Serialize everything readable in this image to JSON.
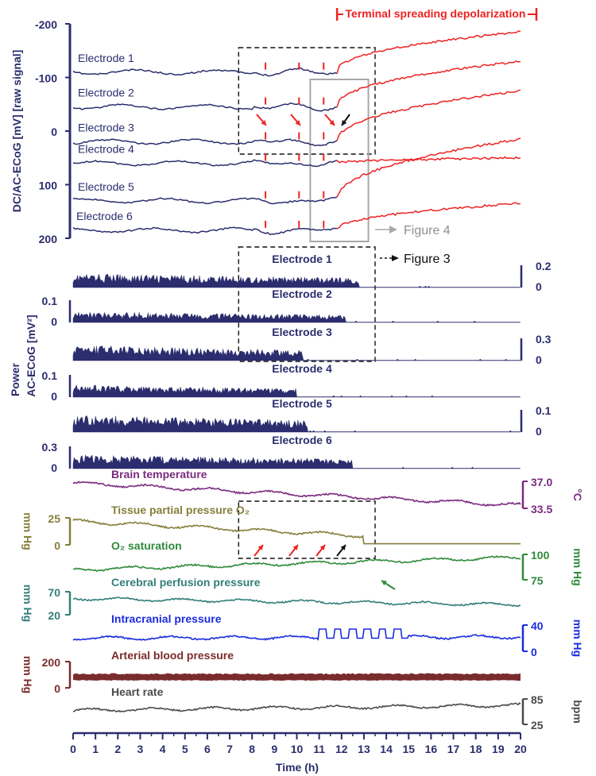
{
  "chart_data": {
    "type": "line",
    "title": "",
    "x_axis": {
      "label": "Time (h)",
      "range": [
        0,
        20
      ],
      "ticks": [
        "0",
        "1",
        "2",
        "3",
        "4",
        "5",
        "6",
        "7",
        "8",
        "9",
        "10",
        "11",
        "12",
        "13",
        "14",
        "15",
        "16",
        "17",
        "18",
        "19",
        "20"
      ]
    },
    "annotations": {
      "tsd": "Terminal spreading depolarization",
      "tsd_range_h": [
        11.8,
        20
      ],
      "figure4": "Figure 4",
      "figure3": "Figure 3",
      "figure4_window_h": [
        10.6,
        13.2
      ],
      "figure3_window_h": [
        7.4,
        13.5
      ]
    },
    "panels": {
      "dc": {
        "ylabel": "DC/AC-ECoG [mV] [raw signal]",
        "ticks": [
          "-200",
          "-100",
          "0",
          "100",
          "200"
        ],
        "tick_values": [
          -200,
          -100,
          0,
          100,
          200
        ],
        "range": [
          -200,
          200
        ],
        "series": [
          {
            "name": "Electrode 1",
            "baseline": -110,
            "end": -185,
            "color": "#2b2d6e",
            "tsd_color": "#ee2222"
          },
          {
            "name": "Electrode 2",
            "baseline": -45,
            "end": -130,
            "color": "#2b2d6e",
            "tsd_color": "#ee2222"
          },
          {
            "name": "Electrode 3",
            "baseline": 20,
            "end": -75,
            "color": "#2b2d6e",
            "tsd_color": "#ee2222"
          },
          {
            "name": "Electrode 4",
            "baseline": 60,
            "end": 50,
            "color": "#2b2d6e",
            "tsd_color": "#ee2222"
          },
          {
            "name": "Electrode 5",
            "baseline": 130,
            "end": 15,
            "color": "#2b2d6e",
            "tsd_color": "#ee2222"
          },
          {
            "name": "Electrode 6",
            "baseline": 185,
            "end": 135,
            "color": "#2b2d6e",
            "tsd_color": "#ee2222"
          }
        ]
      },
      "power": {
        "ylabel": "Power",
        "ylabel2": "AC-ECoG [mV²]",
        "series": [
          {
            "name": "Electrode 1",
            "ticks": [
              "0.2",
              "0"
            ],
            "axis_side": "right",
            "activity_until_h": 12.8,
            "level": 0.45
          },
          {
            "name": "Electrode 2",
            "ticks": [
              "0.1",
              "0"
            ],
            "axis_side": "left",
            "activity_until_h": 12.2,
            "level": 0.35
          },
          {
            "name": "Electrode 3",
            "ticks": [
              "0.3",
              "0"
            ],
            "axis_side": "right",
            "activity_until_h": 10.3,
            "level": 0.5
          },
          {
            "name": "Electrode 4",
            "ticks": [
              "0.1",
              "0"
            ],
            "axis_side": "left",
            "activity_until_h": 10.0,
            "level": 0.4
          },
          {
            "name": "Electrode 5",
            "ticks": [
              "0.1",
              "0"
            ],
            "axis_side": "right",
            "activity_until_h": 10.5,
            "level": 0.55
          },
          {
            "name": "Electrode 6",
            "ticks": [
              "0.3",
              "0"
            ],
            "axis_side": "left",
            "activity_until_h": 12.5,
            "level": 0.45
          }
        ]
      },
      "physiology": [
        {
          "name": "Brain temperature",
          "unit": "°C",
          "ticks": [
            "37.0",
            "33.5"
          ],
          "axis_side": "right",
          "color": "#7b2a80",
          "start": 36.8,
          "end": 33.9
        },
        {
          "name": "Tissue partial pressure O₂",
          "unit": "mm Hg",
          "ticks": [
            "25",
            "0"
          ],
          "axis_side": "left",
          "color": "#857f3a",
          "start": 22,
          "end": 1
        },
        {
          "name": "O₂ saturation",
          "unit": "mm Hg",
          "ticks": [
            "100",
            "75"
          ],
          "axis_side": "right",
          "color": "#2f8a3a",
          "start": 85,
          "end": 97
        },
        {
          "name": "Cerebral perfusion pressure",
          "unit": "mm Hg",
          "ticks": [
            "70",
            "20"
          ],
          "axis_side": "left",
          "color": "#327e7a",
          "start": 55,
          "end": 42
        },
        {
          "name": "Intracranial pressure",
          "unit": "mm Hg",
          "ticks": [
            "40",
            "0"
          ],
          "axis_side": "right",
          "color": "#1a2ce0",
          "start": 20,
          "end": 22
        },
        {
          "name": "Arterial blood pressure",
          "unit": "mm Hg",
          "ticks": [
            "200",
            "0"
          ],
          "axis_side": "left",
          "color": "#7a2c2c",
          "start": 85,
          "end": 85
        },
        {
          "name": "Heart rate",
          "unit": "bpm",
          "ticks": [
            "85",
            "25"
          ],
          "axis_side": "right",
          "color": "#4a4a4a",
          "start": 58,
          "end": 70
        }
      ]
    }
  }
}
